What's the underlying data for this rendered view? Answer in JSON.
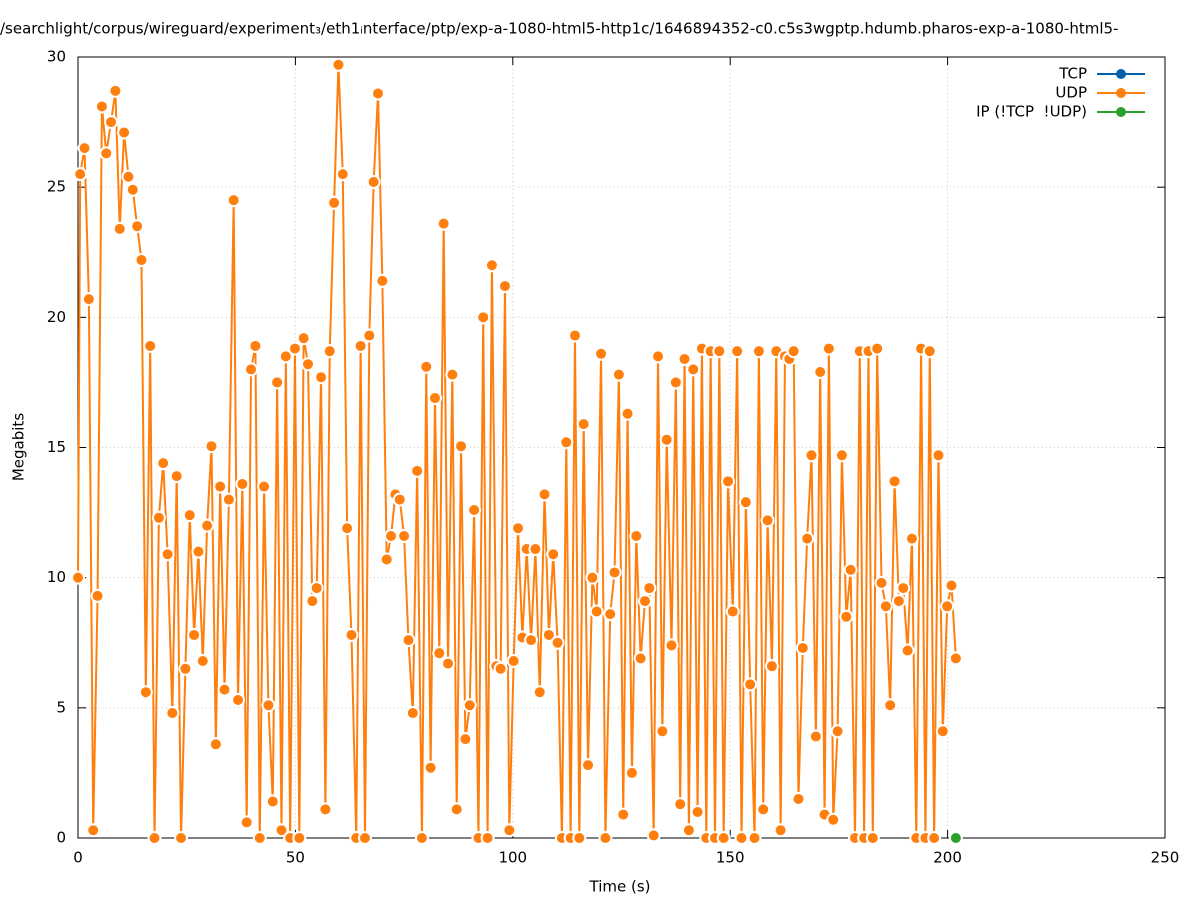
{
  "chart_data": {
    "type": "line",
    "title": "/searchlight/corpus/wireguard/experiment₃/eth1ᵢnterface/ptp/exp-a-1080-html5-http1c/1646894352-c0.c5s3wgptp.hdumb.pharos-exp-a-1080-html5-",
    "xlabel": "Time (s)",
    "ylabel": "Megabits",
    "xlim": [
      0,
      250
    ],
    "xticks": [
      0,
      50,
      100,
      150,
      200,
      250
    ],
    "ylim": [
      0,
      30
    ],
    "yticks": [
      0,
      5,
      10,
      15,
      20,
      25,
      30
    ],
    "grid": true,
    "legend": "top-right",
    "series": [
      {
        "name": "TCP",
        "color": "#0060ad",
        "x": [],
        "values": []
      },
      {
        "name": "UDP",
        "color": "#ff7f0e",
        "x": [
          0,
          0.5,
          1.5,
          2.5,
          3.5,
          4.5,
          5.5,
          6.5,
          7.6,
          8.6,
          9.6,
          10.6,
          11.6,
          12.6,
          13.6,
          14.6,
          15.6,
          16.6,
          17.6,
          18.6,
          19.6,
          20.6,
          21.7,
          22.7,
          23.7,
          24.7,
          25.7,
          26.7,
          27.7,
          28.7,
          29.7,
          30.7,
          31.7,
          32.7,
          33.7,
          34.7,
          35.8,
          36.8,
          37.8,
          38.8,
          39.8,
          40.8,
          41.8,
          42.8,
          43.8,
          44.8,
          45.8,
          46.8,
          47.8,
          48.8,
          49.9,
          50.9,
          51.9,
          52.9,
          53.9,
          54.9,
          55.9,
          56.9,
          57.9,
          58.9,
          59.9,
          60.9,
          61.9,
          62.9,
          64,
          65,
          66,
          67,
          68,
          69,
          70,
          71,
          72,
          73,
          74,
          75,
          76,
          77,
          78,
          79.1,
          80.1,
          81.1,
          82.1,
          83.1,
          84.1,
          85.1,
          86.1,
          87.1,
          88.1,
          89.1,
          90.1,
          91.1,
          92.1,
          93.2,
          94.2,
          95.2,
          96.2,
          97.2,
          98.2,
          99.2,
          100.2,
          101.2,
          102.2,
          103.2,
          104.2,
          105.2,
          106.2,
          107.3,
          108.3,
          109.3,
          110.3,
          111.3,
          112.3,
          113.3,
          114.3,
          115.3,
          116.3,
          117.3,
          118.3,
          119.3,
          120.3,
          121.3,
          122.4,
          123.4,
          124.4,
          125.4,
          126.4,
          127.4,
          128.4,
          129.4,
          130.4,
          131.4,
          132.4,
          133.4,
          134.4,
          135.4,
          136.5,
          137.5,
          138.5,
          139.5,
          140.5,
          141.5,
          142.5,
          143.5,
          144.5,
          145.5,
          146.5,
          147.5,
          148.5,
          149.5,
          150.6,
          151.6,
          152.6,
          153.6,
          154.6,
          155.6,
          156.6,
          157.6,
          158.6,
          159.6,
          160.6,
          161.6,
          162.6,
          163.6,
          164.6,
          165.7,
          166.7,
          167.7,
          168.7,
          169.7,
          170.7,
          171.7,
          172.7,
          173.7,
          174.7,
          175.7,
          176.7,
          177.7,
          178.7,
          179.8,
          180.8,
          181.8,
          182.8,
          183.8,
          184.8,
          185.8,
          186.8,
          187.8,
          188.8,
          189.8,
          190.8,
          191.8,
          192.8,
          193.9,
          194.9,
          195.9,
          196.9,
          197.9,
          198.9,
          199.9,
          200.9,
          201.9
        ],
        "values": [
          10,
          25.5,
          26.5,
          20.7,
          0.3,
          9.3,
          28.1,
          26.3,
          27.5,
          28.7,
          23.4,
          27.1,
          25.4,
          24.9,
          23.5,
          22.2,
          5.6,
          18.9,
          0,
          12.3,
          14.4,
          10.9,
          4.8,
          13.9,
          0,
          6.5,
          12.4,
          7.8,
          11,
          6.8,
          12,
          15.05,
          3.6,
          13.5,
          5.7,
          13,
          24.5,
          5.3,
          13.6,
          0.6,
          18,
          18.9,
          0,
          13.5,
          5.1,
          1.4,
          17.5,
          0.3,
          18.5,
          0,
          18.8,
          0,
          19.2,
          18.2,
          9.1,
          9.6,
          17.7,
          1.1,
          18.7,
          24.4,
          29.7,
          25.5,
          11.9,
          7.8,
          0,
          18.9,
          0,
          19.3,
          25.2,
          28.6,
          21.4,
          10.7,
          11.6,
          13.2,
          13,
          11.6,
          7.6,
          4.8,
          14.1,
          0,
          18.1,
          2.7,
          16.9,
          7.1,
          23.6,
          6.7,
          17.8,
          1.1,
          15.05,
          3.8,
          5.1,
          12.6,
          0,
          20,
          0,
          22,
          6.6,
          6.5,
          21.2,
          0.3,
          6.8,
          11.9,
          7.7,
          11.1,
          7.6,
          11.1,
          5.6,
          13.2,
          7.8,
          10.9,
          7.5,
          0,
          15.2,
          0,
          19.3,
          0,
          15.9,
          2.8,
          10,
          8.7,
          18.6,
          0,
          8.6,
          10.2,
          17.8,
          0.9,
          16.3,
          2.5,
          11.6,
          6.9,
          9.1,
          9.6,
          0.1,
          18.5,
          4.1,
          15.3,
          7.4,
          17.5,
          1.3,
          18.4,
          0.3,
          18,
          1,
          18.8,
          0,
          18.7,
          0,
          18.7,
          0,
          13.7,
          8.7,
          18.7,
          0,
          12.9,
          5.9,
          0,
          18.7,
          1.1,
          12.2,
          6.6,
          18.7,
          0.3,
          18.5,
          18.4,
          18.7,
          1.5,
          7.3,
          11.5,
          14.7,
          3.9,
          17.9,
          0.9,
          18.8,
          0.7,
          4.1,
          14.7,
          8.5,
          10.3,
          0,
          18.7,
          0,
          18.7,
          0,
          18.8,
          9.8,
          8.9,
          5.1,
          13.7,
          9.1,
          9.6,
          7.2,
          11.5,
          0,
          18.8,
          0,
          18.7,
          0,
          14.7,
          4.1,
          8.9,
          9.7,
          6.9
        ]
      },
      {
        "name": "IP (!TCP  !UDP)",
        "color": "#2ca02c",
        "x": [
          201.9
        ],
        "values": [
          0
        ]
      }
    ]
  }
}
